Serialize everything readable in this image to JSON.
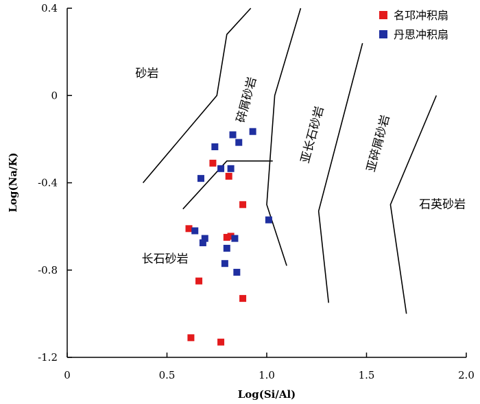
{
  "chart_data": {
    "type": "scatter",
    "xlabel": "Log(Si/Al)",
    "ylabel": "Log(Na/K)",
    "xlim": [
      0,
      2.0
    ],
    "ylim": [
      -1.2,
      0.4
    ],
    "xticks": [
      {
        "value": 0,
        "label": "0"
      },
      {
        "value": 0.5,
        "label": "0.5"
      },
      {
        "value": 1.0,
        "label": "1.0"
      },
      {
        "value": 1.5,
        "label": "1.5"
      },
      {
        "value": 2.0,
        "label": "2.0"
      }
    ],
    "yticks": [
      {
        "value": 0.4,
        "label": "0.4"
      },
      {
        "value": 0,
        "label": "0"
      },
      {
        "value": -0.4,
        "label": "-0.4"
      },
      {
        "value": -0.8,
        "label": "-0.8"
      },
      {
        "value": -1.2,
        "label": "-1.2"
      }
    ],
    "legend_position": "top-right",
    "series": [
      {
        "name": "名邛冲积扇",
        "color": "#e31a1c",
        "points": [
          {
            "x": 0.73,
            "y": -0.31
          },
          {
            "x": 0.81,
            "y": -0.37
          },
          {
            "x": 0.88,
            "y": -0.5
          },
          {
            "x": 0.61,
            "y": -0.61
          },
          {
            "x": 0.8,
            "y": -0.65
          },
          {
            "x": 0.82,
            "y": -0.645
          },
          {
            "x": 0.66,
            "y": -0.85
          },
          {
            "x": 0.88,
            "y": -0.93
          },
          {
            "x": 0.62,
            "y": -1.11
          },
          {
            "x": 0.77,
            "y": -1.13
          }
        ]
      },
      {
        "name": "丹思冲积扇",
        "color": "#1f2fa0",
        "points": [
          {
            "x": 0.93,
            "y": -0.165
          },
          {
            "x": 0.83,
            "y": -0.18
          },
          {
            "x": 0.86,
            "y": -0.215
          },
          {
            "x": 0.74,
            "y": -0.235
          },
          {
            "x": 0.77,
            "y": -0.335
          },
          {
            "x": 0.82,
            "y": -0.335
          },
          {
            "x": 0.67,
            "y": -0.38
          },
          {
            "x": 1.01,
            "y": -0.57
          },
          {
            "x": 0.64,
            "y": -0.62
          },
          {
            "x": 0.69,
            "y": -0.655
          },
          {
            "x": 0.84,
            "y": -0.655
          },
          {
            "x": 0.68,
            "y": -0.675
          },
          {
            "x": 0.8,
            "y": -0.7
          },
          {
            "x": 0.79,
            "y": -0.77
          },
          {
            "x": 0.85,
            "y": -0.81
          }
        ]
      }
    ],
    "boundaries": [
      {
        "id": "boundary-1",
        "points": [
          [
            0.38,
            -0.4
          ],
          [
            0.75,
            0.0
          ],
          [
            0.8,
            0.28
          ],
          [
            0.92,
            0.4
          ]
        ]
      },
      {
        "id": "boundary-2",
        "points": [
          [
            0.58,
            -0.52
          ],
          [
            0.8,
            -0.3
          ],
          [
            1.03,
            -0.3
          ]
        ]
      },
      {
        "id": "boundary-3",
        "points": [
          [
            1.17,
            0.4
          ],
          [
            1.04,
            0.0
          ],
          [
            1.0,
            -0.5
          ],
          [
            1.1,
            -0.78
          ]
        ]
      },
      {
        "id": "boundary-4",
        "points": [
          [
            1.48,
            0.24
          ],
          [
            1.26,
            -0.53
          ],
          [
            1.31,
            -0.95
          ]
        ]
      },
      {
        "id": "boundary-5",
        "points": [
          [
            1.85,
            0.0
          ],
          [
            1.62,
            -0.5
          ],
          [
            1.7,
            -1.0
          ]
        ]
      }
    ],
    "region_labels": [
      {
        "text": "砂岩",
        "x": 0.4,
        "y": 0.1,
        "rotate": 0
      },
      {
        "text": "碎屑砂岩",
        "x": 0.9,
        "y": -0.02,
        "rotate": -75
      },
      {
        "text": "亚长石砂岩",
        "x": 1.23,
        "y": -0.18,
        "rotate": -75
      },
      {
        "text": "亚碎屑砂岩",
        "x": 1.56,
        "y": -0.22,
        "rotate": -75
      },
      {
        "text": "长石砂岩",
        "x": 0.49,
        "y": -0.75,
        "rotate": 0
      },
      {
        "text": "石英砂岩",
        "x": 1.88,
        "y": -0.5,
        "rotate": 0
      }
    ]
  }
}
